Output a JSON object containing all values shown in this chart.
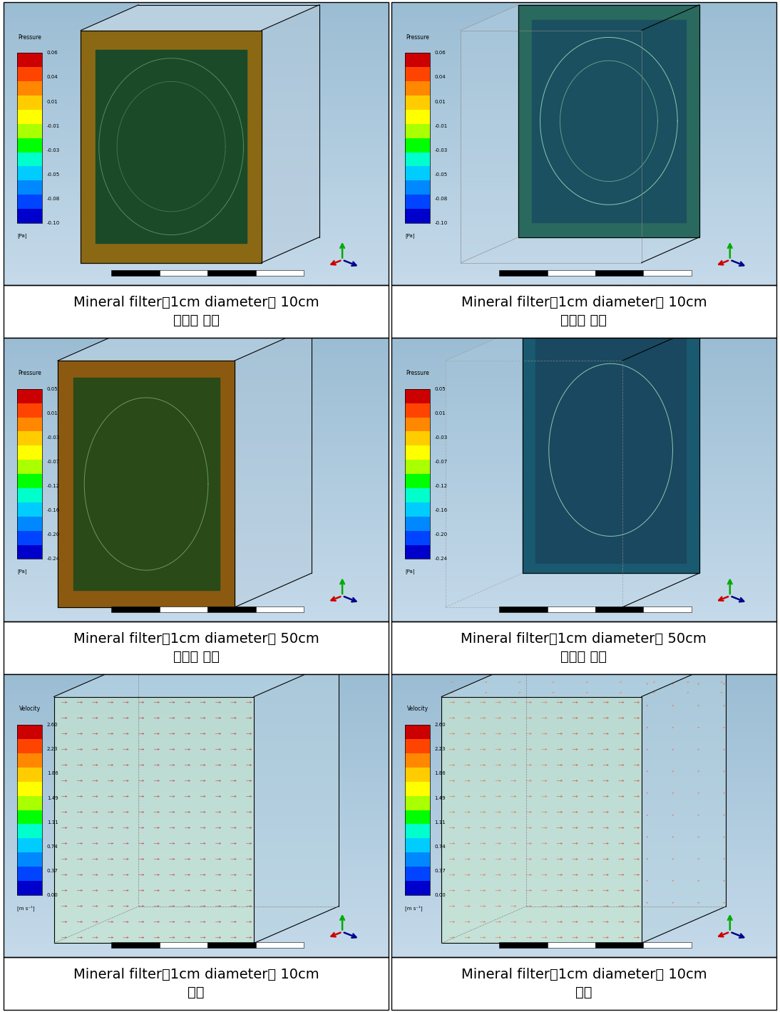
{
  "figsize": [
    10.94,
    14.2
  ],
  "dpi": 100,
  "background_color": "#ffffff",
  "panel_captions": [
    [
      "Mineral filter（1cm diameter） 10cm\n전단부 압력",
      "Mineral filter（1cm diameter） 10cm\n후단부 압력"
    ],
    [
      "Mineral filter（1cm diameter） 50cm\n전단부 압력",
      "Mineral filter（1cm diameter） 50cm\n후단부 압력"
    ],
    [
      "Mineral filter（1cm diameter） 10cm\n풍속",
      "Mineral filter（1cm diameter） 10cm\n풍속"
    ]
  ],
  "pressure_labels_10cm": [
    "0.06",
    "0.04",
    "0.01",
    "-0.01",
    "-0.03",
    "-0.05",
    "-0.08",
    "-0.10"
  ],
  "pressure_labels_50cm": [
    "0.05",
    "0.01",
    "-0.03",
    "-0.07",
    "-0.12",
    "-0.16",
    "-0.20",
    "-0.24"
  ],
  "velocity_labels": [
    "2.60",
    "2.23",
    "1.86",
    "1.49",
    "1.11",
    "0.74",
    "0.37",
    "0.00"
  ],
  "caption_fontsize": 14,
  "sky_top": "#9bbdd4",
  "sky_bottom": "#c5daea",
  "colorbar_colors_pressure": [
    "#cc0000",
    "#ff4400",
    "#ff8800",
    "#ffcc00",
    "#ffff00",
    "#aaff00",
    "#00ff00",
    "#00ffcc",
    "#00ccff",
    "#0088ff",
    "#0044ff",
    "#0000cc"
  ],
  "colorbar_colors_velocity": [
    "#cc0000",
    "#ff4400",
    "#ff8800",
    "#ffcc00",
    "#ffff00",
    "#aaff00",
    "#00ff00",
    "#00ffcc",
    "#00ccff",
    "#0088ff",
    "#0044ff",
    "#0000cc"
  ]
}
